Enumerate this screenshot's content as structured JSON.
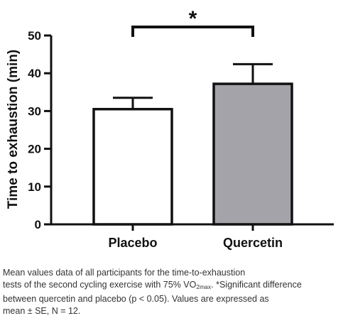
{
  "chart_data": {
    "type": "bar",
    "ylabel": "Time to exhaustion (min)",
    "xlabel": "",
    "ylim": [
      0,
      50
    ],
    "yticks": [
      0,
      10,
      20,
      30,
      40,
      50
    ],
    "categories": [
      "Placebo",
      "Quercetin"
    ],
    "values": [
      30.5,
      37.2
    ],
    "errors": [
      3.0,
      5.2
    ],
    "error_type": "SE",
    "bar_colors": [
      "#ffffff",
      "#a3a3a9"
    ],
    "significance": {
      "between": [
        "Placebo",
        "Quercetin"
      ],
      "label": "*"
    }
  },
  "caption": {
    "line1": "Mean values data of all participants for the time-to-exhaustion",
    "line2_pre": "tests of the second cycling exercise with 75% VO",
    "line2_sub": "2max",
    "line2_post": ". *Significant difference",
    "line3": "between quercetin and placebo (p < 0.05). Values are expressed as",
    "line4": "mean ± SE, N = 12."
  }
}
